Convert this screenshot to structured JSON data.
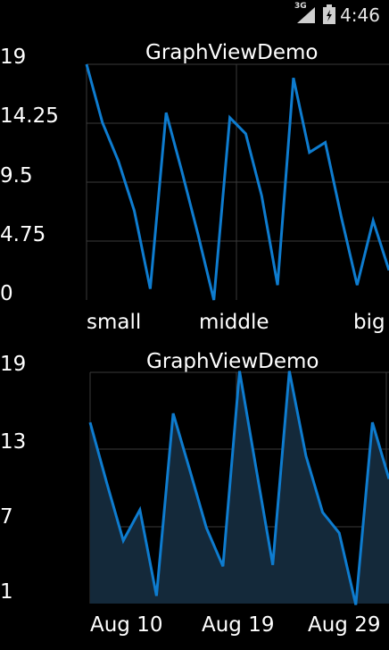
{
  "status_bar": {
    "network_type": "3G",
    "time": "4:46",
    "icons": [
      "signal-icon",
      "battery-icon"
    ]
  },
  "colors": {
    "background": "#000000",
    "line": "#0e7ccf",
    "area_fill": "#14293a",
    "grid": "#3a3a3a"
  },
  "chart_data": [
    {
      "type": "line",
      "title": "GraphViewDemo",
      "ylim": [
        0,
        19
      ],
      "y_tick_labels": [
        "19",
        "14.25",
        "9.5",
        "4.75",
        "0"
      ],
      "x_tick_labels": [
        "small",
        "middle",
        "big"
      ],
      "grid": true,
      "series": [
        {
          "values": [
            19,
            14.3,
            11.2,
            7.2,
            0.9,
            15.1,
            10.3,
            5.3,
            0,
            14.7,
            13.4,
            8.4,
            1.2,
            17.9,
            11.9,
            12.7,
            6.7,
            1.2,
            6.4,
            2.4
          ]
        }
      ]
    },
    {
      "type": "area",
      "title": "GraphViewDemo",
      "ylim": [
        1,
        19
      ],
      "y_tick_labels": [
        "19",
        "13",
        "7",
        "1"
      ],
      "x_tick_labels": [
        "Aug 10",
        "Aug 19",
        "Aug 29"
      ],
      "grid": true,
      "series": [
        {
          "values": [
            15.1,
            10.4,
            5.9,
            8.3,
            1.6,
            15.8,
            11.4,
            6.9,
            3.9,
            19.1,
            11.5,
            4,
            19.1,
            12.5,
            8.1,
            6.5,
            0.9,
            15.1,
            10.7
          ]
        }
      ]
    }
  ]
}
